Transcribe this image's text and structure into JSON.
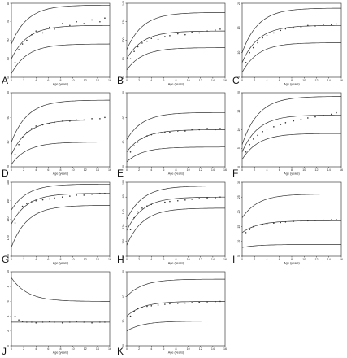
{
  "chart_data": [
    {
      "panel": "A",
      "type": "scatter",
      "xlabel": "Age (years)",
      "xlim": [
        0,
        16
      ],
      "xticks": [
        0,
        2,
        4,
        6,
        8,
        10,
        12,
        14,
        16
      ],
      "ylim": [
        40,
        80
      ],
      "yticks": [
        40,
        50,
        60,
        70,
        80
      ],
      "curves": {
        "upper": {
          "start": 58,
          "end": 79
        },
        "median": {
          "start": 50,
          "end": 68
        },
        "lower": {
          "start": 42,
          "end": 58
        }
      },
      "x": [
        0.6,
        1.2,
        1.8,
        2.5,
        3.3,
        4.0,
        5.1,
        6.2,
        7.0,
        8.3,
        9.5,
        10.6,
        11.8,
        13.1,
        14.4,
        15.2
      ],
      "y": [
        48,
        55,
        58,
        60,
        63,
        65,
        64,
        67,
        66,
        69,
        68,
        70,
        69,
        71,
        70,
        72
      ]
    },
    {
      "panel": "B",
      "type": "scatter",
      "xlabel": "Age (years)",
      "xlim": [
        0,
        16
      ],
      "xticks": [
        0,
        2,
        4,
        6,
        8,
        10,
        12,
        14,
        16
      ],
      "ylim": [
        60,
        140
      ],
      "yticks": [
        60,
        80,
        100,
        120,
        140
      ],
      "curves": {
        "upper": {
          "start": 90,
          "end": 130
        },
        "median": {
          "start": 80,
          "end": 110
        },
        "lower": {
          "start": 68,
          "end": 92
        }
      },
      "x": [
        0.6,
        1.2,
        1.8,
        2.5,
        3.3,
        4.0,
        5.1,
        6.2,
        7.0,
        8.3,
        9.5,
        10.6,
        11.8,
        13.1,
        14.4,
        15.2
      ],
      "y": [
        80,
        88,
        93,
        97,
        99,
        102,
        101,
        104,
        105,
        107,
        106,
        109,
        108,
        110,
        111,
        112
      ]
    },
    {
      "panel": "C",
      "type": "scatter",
      "xlabel": "Age (years)",
      "xlim": [
        0,
        16
      ],
      "xticks": [
        0,
        2,
        4,
        6,
        8,
        10,
        12,
        14,
        16
      ],
      "ylim": [
        5,
        20
      ],
      "yticks": [
        5,
        10,
        15,
        20
      ],
      "curves": {
        "upper": {
          "start": 10,
          "end": 19
        },
        "median": {
          "start": 8,
          "end": 15.5
        },
        "lower": {
          "start": 6,
          "end": 12
        }
      },
      "x": [
        0.6,
        1.2,
        1.8,
        2.5,
        3.3,
        4.0,
        5.1,
        6.2,
        7.0,
        8.3,
        9.5,
        10.6,
        11.8,
        13.1,
        14.4,
        15.2
      ],
      "y": [
        8,
        10,
        11,
        12,
        13,
        13.5,
        14,
        14.5,
        14.8,
        15,
        15.2,
        15.5,
        15.4,
        15.7,
        15.6,
        15.8
      ]
    },
    {
      "panel": "D",
      "type": "scatter",
      "xlabel": "Age (years)",
      "xlim": [
        0,
        16
      ],
      "xticks": [
        0,
        2,
        4,
        6,
        8,
        10,
        12,
        14,
        16
      ],
      "ylim": [
        20,
        80
      ],
      "yticks": [
        20,
        40,
        60,
        80
      ],
      "curves": {
        "upper": {
          "start": 40,
          "end": 74
        },
        "median": {
          "start": 30,
          "end": 58
        },
        "lower": {
          "start": 22,
          "end": 40
        }
      },
      "x": [
        0.6,
        1.2,
        1.8,
        2.5,
        3.3,
        4.0,
        5.1,
        6.2,
        7.0,
        8.3,
        9.5,
        10.6,
        11.8,
        13.1,
        14.4,
        15.2
      ],
      "y": [
        30,
        38,
        44,
        48,
        51,
        53,
        54,
        55,
        56,
        57,
        57,
        58,
        58,
        59,
        59,
        60
      ]
    },
    {
      "panel": "E",
      "type": "scatter",
      "xlabel": "Age (years)",
      "xlim": [
        0,
        16
      ],
      "xticks": [
        0,
        2,
        4,
        6,
        8,
        10,
        12,
        14,
        16
      ],
      "ylim": [
        20,
        80
      ],
      "yticks": [
        20,
        40,
        60,
        80
      ],
      "curves": {
        "upper": {
          "start": 42,
          "end": 64
        },
        "median": {
          "start": 32,
          "end": 50
        },
        "lower": {
          "start": 24,
          "end": 36
        }
      },
      "x": [
        0.6,
        1.2,
        1.8,
        2.5,
        3.3,
        4.0,
        5.1,
        6.2,
        7.0,
        8.3,
        9.5,
        10.6,
        11.8,
        13.1,
        14.4,
        15.2
      ],
      "y": [
        32,
        37,
        40,
        43,
        45,
        46,
        47,
        48,
        48,
        49,
        49,
        50,
        50,
        51,
        50,
        51
      ]
    },
    {
      "panel": "F",
      "type": "scatter",
      "xlabel": "Age (years)",
      "xlim": [
        0,
        16
      ],
      "xticks": [
        0,
        2,
        4,
        6,
        8,
        10,
        12,
        14,
        16
      ],
      "ylim": [
        0,
        20
      ],
      "yticks": [
        0,
        5,
        10,
        15,
        20
      ],
      "curves": {
        "upper": {
          "start": 6,
          "end": 19
        },
        "median": {
          "start": 4,
          "end": 14
        },
        "lower": {
          "start": 2,
          "end": 9
        }
      },
      "x": [
        0.6,
        1.2,
        1.8,
        2.5,
        3.3,
        4.0,
        5.1,
        6.2,
        7.0,
        8.3,
        9.5,
        10.6,
        11.8,
        13.1,
        14.4,
        15.2
      ],
      "y": [
        4,
        6,
        7.5,
        8.5,
        9.5,
        10.2,
        10.8,
        11.4,
        11.9,
        12.4,
        12.8,
        13.2,
        13.5,
        13.9,
        14.2,
        14.6
      ]
    },
    {
      "panel": "G",
      "type": "scatter",
      "xlabel": "Age (years)",
      "xlim": [
        0,
        16
      ],
      "xticks": [
        0,
        2,
        4,
        6,
        8,
        10,
        12,
        14,
        16
      ],
      "ylim": [
        100,
        180
      ],
      "yticks": [
        100,
        120,
        140,
        160,
        180
      ],
      "curves": {
        "upper": {
          "start": 150,
          "end": 178
        },
        "median": {
          "start": 135,
          "end": 168
        },
        "lower": {
          "start": 110,
          "end": 155
        }
      },
      "x": [
        0.6,
        1.2,
        1.8,
        2.5,
        3.3,
        4.0,
        5.1,
        6.2,
        7.0,
        8.3,
        9.5,
        10.6,
        11.8,
        13.1,
        14.4,
        15.2
      ],
      "y": [
        136,
        148,
        154,
        157,
        159,
        160,
        161,
        162,
        163,
        164,
        165,
        166,
        166,
        167,
        168,
        168
      ]
    },
    {
      "panel": "H",
      "type": "scatter",
      "xlabel": "Age (years)",
      "xlim": [
        0,
        16
      ],
      "xticks": [
        0,
        2,
        4,
        6,
        8,
        10,
        12,
        14,
        16
      ],
      "ylim": [
        80,
        180
      ],
      "yticks": [
        80,
        100,
        120,
        140,
        160,
        180
      ],
      "curves": {
        "upper": {
          "start": 130,
          "end": 175
        },
        "median": {
          "start": 115,
          "end": 160
        },
        "lower": {
          "start": 95,
          "end": 145
        }
      },
      "x": [
        0.6,
        1.2,
        1.8,
        2.5,
        3.3,
        4.0,
        5.1,
        6.2,
        7.0,
        8.3,
        9.5,
        10.6,
        11.8,
        13.1,
        14.4,
        15.2
      ],
      "y": [
        116,
        132,
        140,
        145,
        148,
        150,
        152,
        153,
        154,
        155,
        156,
        157,
        158,
        159,
        159,
        160
      ]
    },
    {
      "panel": "I",
      "type": "scatter",
      "xlabel": "Age (years)",
      "xlim": [
        0,
        16
      ],
      "xticks": [
        0,
        2,
        4,
        6,
        8,
        10,
        12,
        14,
        16
      ],
      "ylim": [
        5,
        30
      ],
      "yticks": [
        5,
        10,
        15,
        20,
        25,
        30
      ],
      "curves": {
        "upper": {
          "start": 18,
          "end": 26
        },
        "median": {
          "start": 13,
          "end": 17
        },
        "lower": {
          "start": 8,
          "end": 9
        }
      },
      "x": [
        0.6,
        1.2,
        1.8,
        2.5,
        3.3,
        4.0,
        5.1,
        6.2,
        7.0,
        8.3,
        9.5,
        10.6,
        11.8,
        13.1,
        14.4,
        15.2
      ],
      "y": [
        13,
        14,
        15,
        15.5,
        15.8,
        16,
        16.2,
        16.4,
        16.6,
        16.8,
        16.9,
        17,
        17.1,
        17.2,
        17.3,
        17.4
      ]
    },
    {
      "panel": "J",
      "type": "scatter",
      "xlabel": "Age (years)",
      "xlim": [
        0,
        16
      ],
      "xticks": [
        0,
        2,
        4,
        6,
        8,
        10,
        12,
        14,
        16
      ],
      "ylim": [
        0,
        10
      ],
      "yticks": [
        0,
        2,
        4,
        6,
        8,
        10
      ],
      "curves": {
        "upper": {
          "start": 9.2,
          "end": 6
        },
        "median": {
          "start": 3.2,
          "end": 3.2
        },
        "lower": {
          "start": 1.6,
          "end": 1.6
        }
      },
      "x": [
        0.6,
        1.2,
        1.8,
        2.5,
        3.3,
        4.0,
        5.1,
        6.2,
        7.0,
        8.3,
        9.5,
        10.6,
        11.8,
        13.1,
        14.4,
        15.2
      ],
      "y": [
        4,
        3.5,
        3.3,
        3.2,
        3.2,
        3.1,
        3.2,
        3.3,
        3.2,
        3.1,
        3.2,
        3.3,
        3.2,
        3.1,
        3.2,
        3.2
      ]
    },
    {
      "panel": "K",
      "type": "scatter",
      "xlabel": "Age (years)",
      "xlim": [
        0,
        16
      ],
      "xticks": [
        0,
        2,
        4,
        6,
        8,
        10,
        12,
        14,
        16
      ],
      "ylim": [
        20,
        50
      ],
      "yticks": [
        20,
        30,
        40,
        50
      ],
      "curves": {
        "upper": {
          "start": 40,
          "end": 47
        },
        "median": {
          "start": 32,
          "end": 38
        },
        "lower": {
          "start": 26,
          "end": 30
        }
      },
      "x": [
        0.6,
        1.2,
        1.8,
        2.5,
        3.3,
        4.0,
        5.1,
        6.2,
        7.0,
        8.3,
        9.5,
        10.6,
        11.8,
        13.1,
        14.4,
        15.2
      ],
      "y": [
        32,
        34,
        35,
        35.5,
        36,
        36.2,
        36.5,
        36.8,
        37,
        37.2,
        37.3,
        37.5,
        37.6,
        37.8,
        37.9,
        38
      ]
    }
  ]
}
